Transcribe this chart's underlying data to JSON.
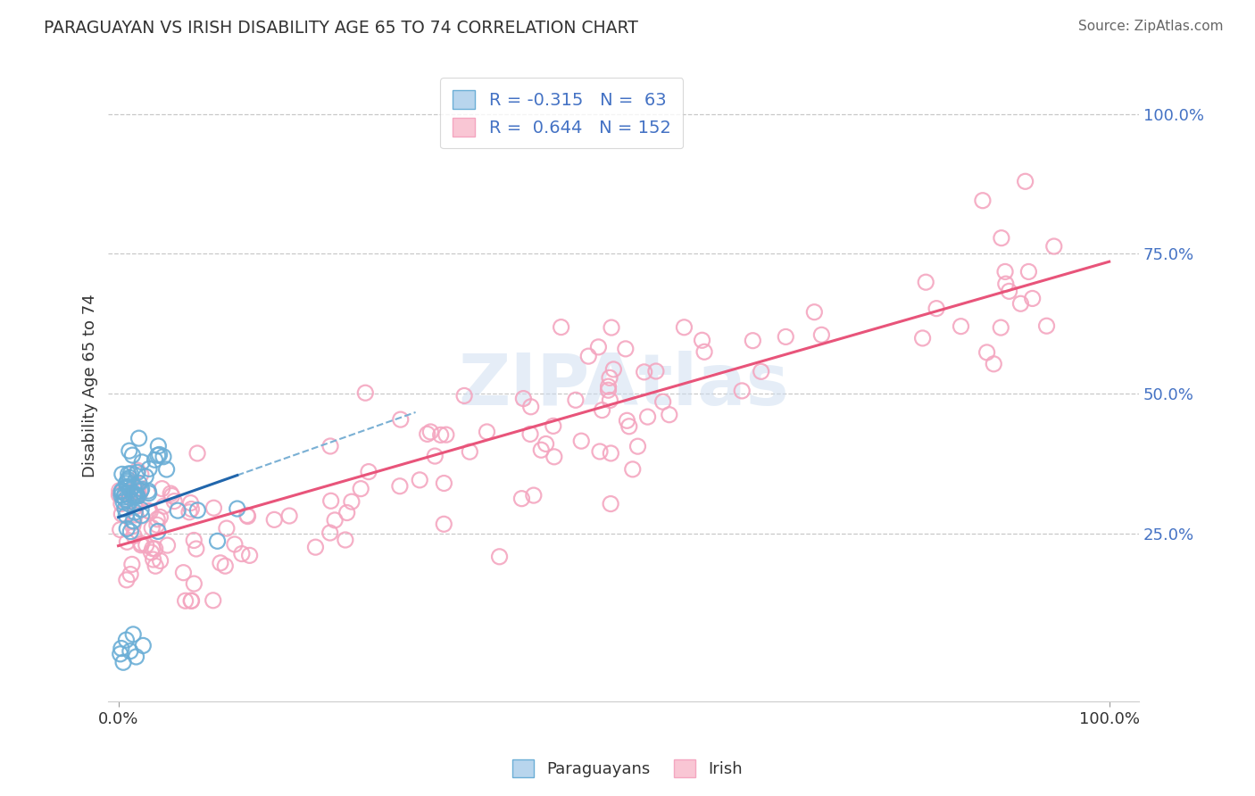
{
  "title": "PARAGUAYAN VS IRISH DISABILITY AGE 65 TO 74 CORRELATION CHART",
  "source": "Source: ZipAtlas.com",
  "ylabel": "Disability Age 65 to 74",
  "watermark": "ZIPAtlas",
  "legend_par_label": "R = -0.315   N =  63",
  "legend_ire_label": "R =  0.644   N = 152",
  "paraguayan_edge_color": "#6baed6",
  "irish_edge_color": "#f4a6c0",
  "regression_par_color": "#2166ac",
  "regression_ire_color": "#e8547a",
  "ytick_labels": [
    "25.0%",
    "50.0%",
    "75.0%",
    "100.0%"
  ],
  "ytick_positions": [
    0.25,
    0.5,
    0.75,
    1.0
  ],
  "xtick_labels": [
    "0.0%",
    "100.0%"
  ],
  "xtick_positions": [
    0.0,
    1.0
  ],
  "background_color": "#ffffff",
  "grid_color": "#c8c8c8",
  "title_color": "#333333",
  "source_color": "#666666",
  "ytick_color": "#4472c4",
  "legend_text_color": "#4472c4"
}
